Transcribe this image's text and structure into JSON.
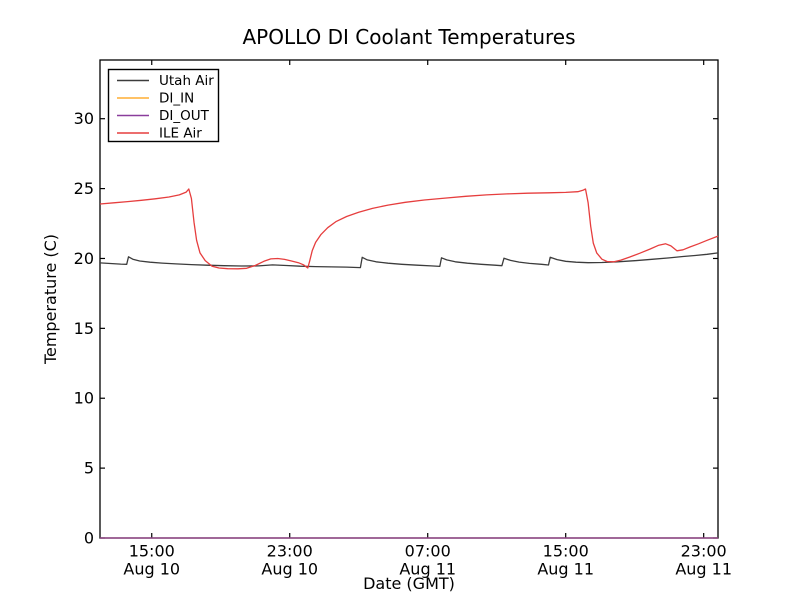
{
  "figure": {
    "background": "#ffffff",
    "axis_color": "#000000"
  },
  "chart_data": {
    "type": "line",
    "title": "APOLLO DI Coolant Temperatures",
    "xlabel": "Date (GMT)",
    "ylabel": "Temperature (C)",
    "x_units": "hours from Aug 10 00:00 GMT",
    "xlim": [
      12,
      47.83
    ],
    "ylim": [
      0,
      34.2
    ],
    "yticks": [
      0,
      5,
      10,
      15,
      20,
      25,
      30
    ],
    "xticks": [
      {
        "hour": 15,
        "time": "15:00",
        "date": "Aug 10"
      },
      {
        "hour": 23,
        "time": "23:00",
        "date": "Aug 10"
      },
      {
        "hour": 31,
        "time": "07:00",
        "date": "Aug 11"
      },
      {
        "hour": 39,
        "time": "15:00",
        "date": "Aug 11"
      },
      {
        "hour": 47,
        "time": "23:00",
        "date": "Aug 11"
      }
    ],
    "grid": false,
    "legend": {
      "position": "upper left",
      "entries": [
        "Utah Air",
        "DI_IN",
        "DI_OUT",
        "ILE Air"
      ]
    },
    "series": [
      {
        "name": "Utah Air",
        "color": "#3c3c3c",
        "points": [
          [
            12,
            19.68
          ],
          [
            12.6,
            19.64
          ],
          [
            13.2,
            19.6
          ],
          [
            13.55,
            19.58
          ],
          [
            13.65,
            20.12
          ],
          [
            13.9,
            19.95
          ],
          [
            14.3,
            19.82
          ],
          [
            14.9,
            19.73
          ],
          [
            15.6,
            19.67
          ],
          [
            16.4,
            19.61
          ],
          [
            17.3,
            19.56
          ],
          [
            18.2,
            19.52
          ],
          [
            19.2,
            19.48
          ],
          [
            20.2,
            19.46
          ],
          [
            21.2,
            19.47
          ],
          [
            22.0,
            19.54
          ],
          [
            22.8,
            19.5
          ],
          [
            23.6,
            19.45
          ],
          [
            24.5,
            19.42
          ],
          [
            25.4,
            19.4
          ],
          [
            26.3,
            19.38
          ],
          [
            27.1,
            19.35
          ],
          [
            27.2,
            20.08
          ],
          [
            27.5,
            19.9
          ],
          [
            28,
            19.76
          ],
          [
            28.7,
            19.66
          ],
          [
            29.5,
            19.58
          ],
          [
            30.4,
            19.52
          ],
          [
            31.2,
            19.47
          ],
          [
            31.7,
            19.43
          ],
          [
            31.8,
            20.05
          ],
          [
            32.1,
            19.9
          ],
          [
            32.6,
            19.76
          ],
          [
            33.3,
            19.66
          ],
          [
            34.1,
            19.58
          ],
          [
            34.9,
            19.52
          ],
          [
            35.3,
            19.48
          ],
          [
            35.42,
            20.02
          ],
          [
            35.8,
            19.86
          ],
          [
            36.3,
            19.74
          ],
          [
            36.9,
            19.65
          ],
          [
            37.6,
            19.58
          ],
          [
            38.0,
            19.53
          ],
          [
            38.1,
            20.08
          ],
          [
            38.5,
            19.92
          ],
          [
            39,
            19.8
          ],
          [
            39.6,
            19.73
          ],
          [
            40.3,
            19.7
          ],
          [
            41.1,
            19.71
          ],
          [
            42,
            19.76
          ],
          [
            43,
            19.84
          ],
          [
            44,
            19.94
          ],
          [
            45,
            20.04
          ],
          [
            45.8,
            20.14
          ],
          [
            46.5,
            20.21
          ],
          [
            47.2,
            20.3
          ],
          [
            47.83,
            20.4
          ]
        ]
      },
      {
        "name": "DI_IN",
        "color": "#ffae33",
        "points": [
          [
            12,
            0
          ],
          [
            47.83,
            0
          ]
        ]
      },
      {
        "name": "DI_OUT",
        "color": "#8a3d9c",
        "points": [
          [
            12,
            0
          ],
          [
            47.83,
            0
          ]
        ]
      },
      {
        "name": "ILE Air",
        "color": "#e63e3e",
        "points": [
          [
            12,
            23.9
          ],
          [
            12.8,
            23.98
          ],
          [
            13.6,
            24.07
          ],
          [
            14.4,
            24.16
          ],
          [
            15.2,
            24.27
          ],
          [
            16,
            24.4
          ],
          [
            16.6,
            24.55
          ],
          [
            17,
            24.75
          ],
          [
            17.15,
            24.97
          ],
          [
            17.3,
            24.3
          ],
          [
            17.45,
            22.6
          ],
          [
            17.6,
            21.3
          ],
          [
            17.8,
            20.4
          ],
          [
            18.1,
            19.85
          ],
          [
            18.5,
            19.45
          ],
          [
            18.9,
            19.32
          ],
          [
            19.4,
            19.27
          ],
          [
            20,
            19.26
          ],
          [
            20.5,
            19.3
          ],
          [
            21,
            19.5
          ],
          [
            21.5,
            19.8
          ],
          [
            21.9,
            19.97
          ],
          [
            22.3,
            20.0
          ],
          [
            22.7,
            19.93
          ],
          [
            23.1,
            19.82
          ],
          [
            23.5,
            19.7
          ],
          [
            23.8,
            19.55
          ],
          [
            24.05,
            19.32
          ],
          [
            24.15,
            19.8
          ],
          [
            24.3,
            20.55
          ],
          [
            24.5,
            21.15
          ],
          [
            24.8,
            21.7
          ],
          [
            25.2,
            22.2
          ],
          [
            25.7,
            22.65
          ],
          [
            26.3,
            23.0
          ],
          [
            27,
            23.3
          ],
          [
            27.8,
            23.58
          ],
          [
            28.7,
            23.82
          ],
          [
            29.7,
            24.02
          ],
          [
            30.8,
            24.18
          ],
          [
            32,
            24.32
          ],
          [
            33.2,
            24.45
          ],
          [
            34.4,
            24.55
          ],
          [
            35.6,
            24.62
          ],
          [
            36.8,
            24.67
          ],
          [
            38,
            24.7
          ],
          [
            39,
            24.73
          ],
          [
            39.7,
            24.78
          ],
          [
            40,
            24.88
          ],
          [
            40.15,
            24.97
          ],
          [
            40.3,
            24.0
          ],
          [
            40.45,
            22.3
          ],
          [
            40.6,
            21.1
          ],
          [
            40.8,
            20.4
          ],
          [
            41.1,
            19.95
          ],
          [
            41.4,
            19.78
          ],
          [
            41.8,
            19.76
          ],
          [
            42.2,
            19.88
          ],
          [
            42.7,
            20.1
          ],
          [
            43.3,
            20.38
          ],
          [
            43.9,
            20.68
          ],
          [
            44.4,
            20.95
          ],
          [
            44.8,
            21.05
          ],
          [
            45.1,
            20.9
          ],
          [
            45.45,
            20.55
          ],
          [
            45.8,
            20.62
          ],
          [
            46.2,
            20.82
          ],
          [
            46.7,
            21.05
          ],
          [
            47.2,
            21.3
          ],
          [
            47.83,
            21.6
          ]
        ]
      }
    ]
  }
}
